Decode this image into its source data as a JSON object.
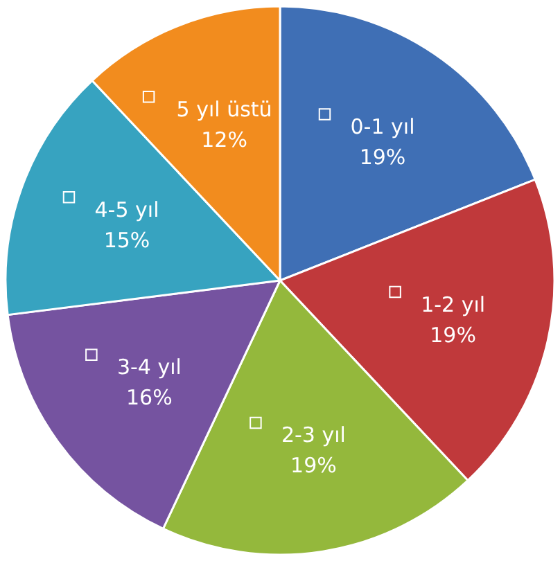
{
  "chart_data": {
    "type": "pie",
    "categories": [
      "0-1 yıl",
      "1-2 yıl",
      "2-3 yıl",
      "3-4 yıl",
      "4-5 yıl",
      "5 yıl üstü"
    ],
    "values": [
      19,
      19,
      19,
      16,
      15,
      12
    ],
    "colors": [
      "#3f6fb5",
      "#c0393b",
      "#94b83c",
      "#7553a0",
      "#37a3c0",
      "#f28c1e"
    ],
    "value_labels": [
      "19%",
      "19%",
      "19%",
      "16%",
      "15%",
      "12%"
    ],
    "legend": true
  }
}
